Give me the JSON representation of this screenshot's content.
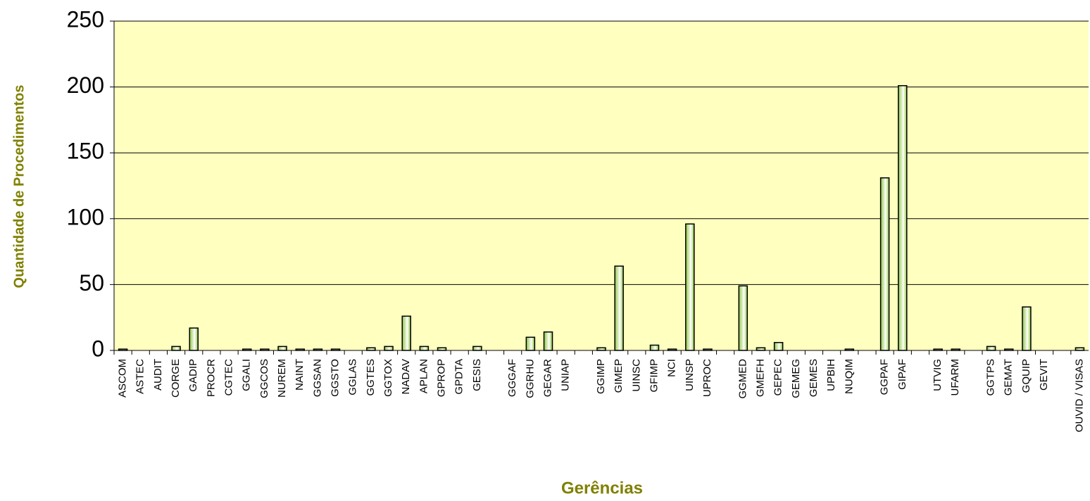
{
  "chart_data": {
    "type": "bar",
    "x_label": "Gerências",
    "y_label": "Quantidade de Procedimentos",
    "categories": [
      "ASCOM",
      "ASTEC",
      "AUDIT",
      "CORGE",
      "GADIP",
      "PROCR",
      "CGTEC",
      "GGALI",
      "GGCOS",
      "NUREM",
      "NAINT",
      "GGSAN",
      "GGSTO",
      "GGLAS",
      "GGTES",
      "GGTOX",
      "NADAV",
      "APLAN",
      "GPROP",
      "GPDTA",
      "GESIS",
      null,
      "GGGAF",
      "GGRHU",
      "GEGAR",
      "UNIAP",
      null,
      "GGIMP",
      "GIMEP",
      "UINSC",
      "GFIMP",
      "NCI",
      "UINSP",
      "UPROC",
      null,
      "GGMED",
      "GMEFH",
      "GEPEC",
      "GEMEG",
      "GEMES",
      "UPBIH",
      "NUQIM",
      null,
      "GGPAF",
      "GIPAF",
      null,
      "UTVIG",
      "UFARM",
      null,
      "GGTPS",
      "GEMAT",
      "GQUIP",
      "GEVIT",
      null,
      "OUVID / VISAS"
    ],
    "values": [
      1,
      0,
      0,
      3,
      17,
      0,
      0,
      1,
      1,
      3,
      1,
      1,
      1,
      0,
      2,
      3,
      26,
      3,
      2,
      0,
      3,
      null,
      0,
      10,
      14,
      0,
      null,
      2,
      64,
      0,
      4,
      1,
      96,
      1,
      null,
      49,
      2,
      6,
      0,
      0,
      0,
      1,
      null,
      131,
      201,
      null,
      1,
      1,
      null,
      3,
      1,
      33,
      0,
      null,
      2
    ],
    "color": "#8dc63f",
    "background": "#ffffc0",
    "ylim": [
      0,
      250
    ],
    "yticks": [
      0,
      50,
      100,
      150,
      200,
      250
    ],
    "grid": true
  }
}
